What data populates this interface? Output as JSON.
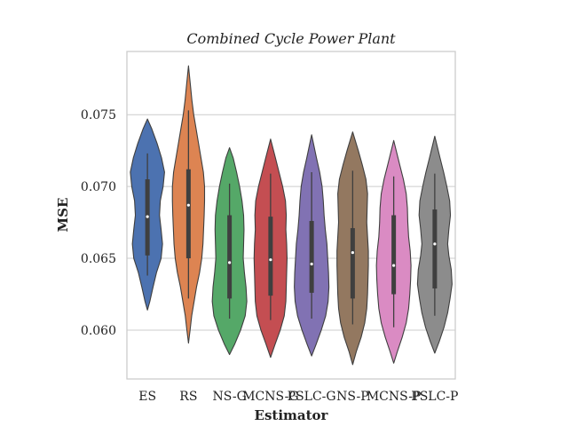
{
  "chart_data": {
    "type": "violin",
    "title": "Combined Cycle Power Plant",
    "xlabel": "Estimator",
    "ylabel": "MSE",
    "ylim": [
      0.0566,
      0.0794
    ],
    "yticks": [
      0.06,
      0.065,
      0.07,
      0.075
    ],
    "ytick_labels": [
      "0.060",
      "0.065",
      "0.070",
      "0.075"
    ],
    "grid": true,
    "categories": [
      "ES",
      "RS",
      "NS-G",
      "MCNS-G",
      "PSLC-G",
      "NS-P",
      "MCNS-P",
      "PSLC-P"
    ],
    "series": [
      {
        "category": "ES",
        "color": "#4c72b0",
        "min": 0.0614,
        "max": 0.0747,
        "whisker_low": 0.0638,
        "whisker_high": 0.0723,
        "q1": 0.0652,
        "median": 0.0679,
        "q3": 0.0705,
        "profile": [
          [
            0.0614,
            0
          ],
          [
            0.062,
            0.12
          ],
          [
            0.063,
            0.28
          ],
          [
            0.064,
            0.45
          ],
          [
            0.065,
            0.68
          ],
          [
            0.066,
            0.75
          ],
          [
            0.067,
            0.68
          ],
          [
            0.068,
            0.6
          ],
          [
            0.069,
            0.64
          ],
          [
            0.07,
            0.78
          ],
          [
            0.071,
            0.85
          ],
          [
            0.072,
            0.7
          ],
          [
            0.073,
            0.48
          ],
          [
            0.074,
            0.22
          ],
          [
            0.0747,
            0
          ]
        ]
      },
      {
        "category": "RS",
        "color": "#dd8452",
        "min": 0.0591,
        "max": 0.0784,
        "whisker_low": 0.0622,
        "whisker_high": 0.0753,
        "q1": 0.065,
        "median": 0.0687,
        "q3": 0.0712,
        "profile": [
          [
            0.0591,
            0
          ],
          [
            0.06,
            0.08
          ],
          [
            0.061,
            0.16
          ],
          [
            0.062,
            0.28
          ],
          [
            0.063,
            0.4
          ],
          [
            0.064,
            0.55
          ],
          [
            0.065,
            0.66
          ],
          [
            0.066,
            0.72
          ],
          [
            0.067,
            0.75
          ],
          [
            0.068,
            0.78
          ],
          [
            0.069,
            0.8
          ],
          [
            0.07,
            0.8
          ],
          [
            0.071,
            0.74
          ],
          [
            0.072,
            0.62
          ],
          [
            0.073,
            0.5
          ],
          [
            0.074,
            0.38
          ],
          [
            0.075,
            0.26
          ],
          [
            0.076,
            0.17
          ],
          [
            0.077,
            0.1
          ],
          [
            0.0784,
            0
          ]
        ]
      },
      {
        "category": "NS-G",
        "color": "#55a868",
        "min": 0.0583,
        "max": 0.0727,
        "whisker_low": 0.0608,
        "whisker_high": 0.0702,
        "q1": 0.0622,
        "median": 0.0647,
        "q3": 0.068,
        "profile": [
          [
            0.0583,
            0
          ],
          [
            0.059,
            0.25
          ],
          [
            0.06,
            0.55
          ],
          [
            0.061,
            0.78
          ],
          [
            0.062,
            0.86
          ],
          [
            0.063,
            0.82
          ],
          [
            0.064,
            0.74
          ],
          [
            0.065,
            0.68
          ],
          [
            0.066,
            0.7
          ],
          [
            0.067,
            0.72
          ],
          [
            0.068,
            0.7
          ],
          [
            0.069,
            0.62
          ],
          [
            0.07,
            0.5
          ],
          [
            0.071,
            0.35
          ],
          [
            0.072,
            0.18
          ],
          [
            0.0727,
            0
          ]
        ]
      },
      {
        "category": "MCNS-G",
        "color": "#c44e52",
        "min": 0.0581,
        "max": 0.0733,
        "whisker_low": 0.0607,
        "whisker_high": 0.0709,
        "q1": 0.0624,
        "median": 0.0649,
        "q3": 0.0679,
        "profile": [
          [
            0.0581,
            0
          ],
          [
            0.059,
            0.22
          ],
          [
            0.06,
            0.48
          ],
          [
            0.061,
            0.68
          ],
          [
            0.062,
            0.76
          ],
          [
            0.063,
            0.78
          ],
          [
            0.064,
            0.8
          ],
          [
            0.065,
            0.82
          ],
          [
            0.066,
            0.8
          ],
          [
            0.067,
            0.76
          ],
          [
            0.068,
            0.78
          ],
          [
            0.069,
            0.74
          ],
          [
            0.07,
            0.6
          ],
          [
            0.071,
            0.42
          ],
          [
            0.072,
            0.24
          ],
          [
            0.0733,
            0
          ]
        ]
      },
      {
        "category": "PSLC-G",
        "color": "#8172b3",
        "min": 0.0582,
        "max": 0.0736,
        "whisker_low": 0.0608,
        "whisker_high": 0.071,
        "q1": 0.0626,
        "median": 0.0646,
        "q3": 0.0676,
        "profile": [
          [
            0.0582,
            0
          ],
          [
            0.059,
            0.22
          ],
          [
            0.06,
            0.48
          ],
          [
            0.061,
            0.7
          ],
          [
            0.062,
            0.82
          ],
          [
            0.063,
            0.86
          ],
          [
            0.064,
            0.84
          ],
          [
            0.065,
            0.8
          ],
          [
            0.066,
            0.76
          ],
          [
            0.067,
            0.68
          ],
          [
            0.068,
            0.62
          ],
          [
            0.069,
            0.58
          ],
          [
            0.07,
            0.52
          ],
          [
            0.071,
            0.4
          ],
          [
            0.072,
            0.24
          ],
          [
            0.0736,
            0
          ]
        ]
      },
      {
        "category": "NS-P",
        "color": "#937860",
        "min": 0.0576,
        "max": 0.0738,
        "whisker_low": 0.0604,
        "whisker_high": 0.0711,
        "q1": 0.0622,
        "median": 0.0654,
        "q3": 0.0671,
        "profile": [
          [
            0.0576,
            0
          ],
          [
            0.0585,
            0.18
          ],
          [
            0.0595,
            0.42
          ],
          [
            0.0605,
            0.6
          ],
          [
            0.0615,
            0.7
          ],
          [
            0.0625,
            0.74
          ],
          [
            0.0635,
            0.76
          ],
          [
            0.0645,
            0.78
          ],
          [
            0.0655,
            0.78
          ],
          [
            0.0665,
            0.74
          ],
          [
            0.0675,
            0.7
          ],
          [
            0.0685,
            0.72
          ],
          [
            0.0695,
            0.74
          ],
          [
            0.0705,
            0.66
          ],
          [
            0.0715,
            0.48
          ],
          [
            0.0725,
            0.28
          ],
          [
            0.0738,
            0
          ]
        ]
      },
      {
        "category": "MCNS-P",
        "color": "#da8bc3",
        "min": 0.0577,
        "max": 0.0732,
        "whisker_low": 0.0602,
        "whisker_high": 0.0707,
        "q1": 0.0625,
        "median": 0.0645,
        "q3": 0.068,
        "profile": [
          [
            0.0577,
            0
          ],
          [
            0.0585,
            0.18
          ],
          [
            0.0595,
            0.42
          ],
          [
            0.0605,
            0.62
          ],
          [
            0.0615,
            0.74
          ],
          [
            0.0625,
            0.8
          ],
          [
            0.0635,
            0.84
          ],
          [
            0.0645,
            0.86
          ],
          [
            0.0655,
            0.82
          ],
          [
            0.0665,
            0.74
          ],
          [
            0.0675,
            0.7
          ],
          [
            0.0685,
            0.68
          ],
          [
            0.0695,
            0.62
          ],
          [
            0.0705,
            0.48
          ],
          [
            0.0715,
            0.3
          ],
          [
            0.0732,
            0
          ]
        ]
      },
      {
        "category": "PSLC-P",
        "color": "#8c8c8c",
        "min": 0.0584,
        "max": 0.0735,
        "whisker_low": 0.061,
        "whisker_high": 0.0709,
        "q1": 0.0629,
        "median": 0.066,
        "q3": 0.0684,
        "profile": [
          [
            0.0584,
            0
          ],
          [
            0.0592,
            0.22
          ],
          [
            0.0602,
            0.46
          ],
          [
            0.0612,
            0.64
          ],
          [
            0.0622,
            0.76
          ],
          [
            0.0632,
            0.86
          ],
          [
            0.0642,
            0.82
          ],
          [
            0.0652,
            0.7
          ],
          [
            0.066,
            0.64
          ],
          [
            0.067,
            0.7
          ],
          [
            0.068,
            0.78
          ],
          [
            0.069,
            0.74
          ],
          [
            0.07,
            0.6
          ],
          [
            0.071,
            0.44
          ],
          [
            0.072,
            0.26
          ],
          [
            0.0735,
            0
          ]
        ]
      }
    ]
  }
}
